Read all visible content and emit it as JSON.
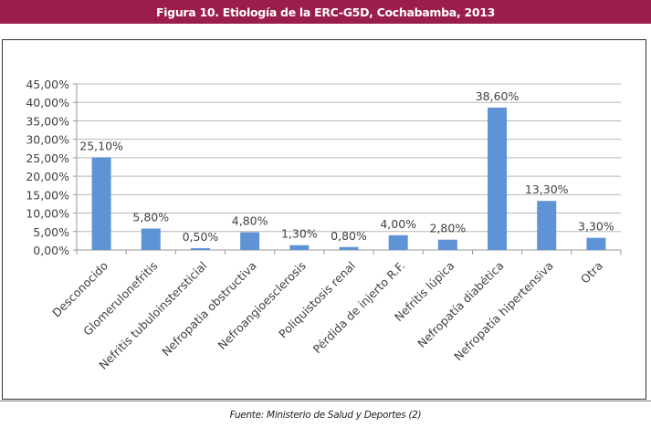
{
  "header": {
    "title": "Figura 10. Etiología de la ERC-G5D, Cochabamba, 2013"
  },
  "source": "Fuente: Ministerio de Salud y Deportes (2)",
  "colors": {
    "header_band": "#9b1d4c",
    "bar": "#5e93d6",
    "gridline": "#b8b8b8",
    "text": "#404040"
  },
  "chart_data": {
    "type": "bar",
    "title": "Figura 10. Etiología de la ERC-G5D, Cochabamba, 2013",
    "xlabel": "",
    "ylabel": "",
    "categories": [
      "Desconocido",
      "Glomerulonefritis",
      "Nefritis tubuloinstersticial",
      "Nefropatia  obstructiva",
      "Nefroangioesclerosis",
      "Poliquistosis renal",
      "Pérdida de injerto R.F.",
      "Nefritis lúpica",
      "Nefropatía diabética",
      "Nefropatía hipertensiva",
      "Otra"
    ],
    "values": [
      25.1,
      5.8,
      0.5,
      4.8,
      1.3,
      0.8,
      4.0,
      2.8,
      38.6,
      13.3,
      3.3
    ],
    "data_labels": [
      "25,10%",
      "5,80%",
      "0,50%",
      "4,80%",
      "1,30%",
      "0,80%",
      "4,00%",
      "2,80%",
      "38,60%",
      "13,30%",
      "3,30%"
    ],
    "ylim": [
      0,
      45
    ],
    "yticks": [
      0,
      5,
      10,
      15,
      20,
      25,
      30,
      35,
      40,
      45
    ],
    "ytick_labels": [
      "0,00%",
      "5,00%",
      "10,00%",
      "15,00%",
      "20,00%",
      "25,00%",
      "30,00%",
      "35,00%",
      "40,00%",
      "45,00%"
    ],
    "grid": true,
    "legend": "none"
  }
}
